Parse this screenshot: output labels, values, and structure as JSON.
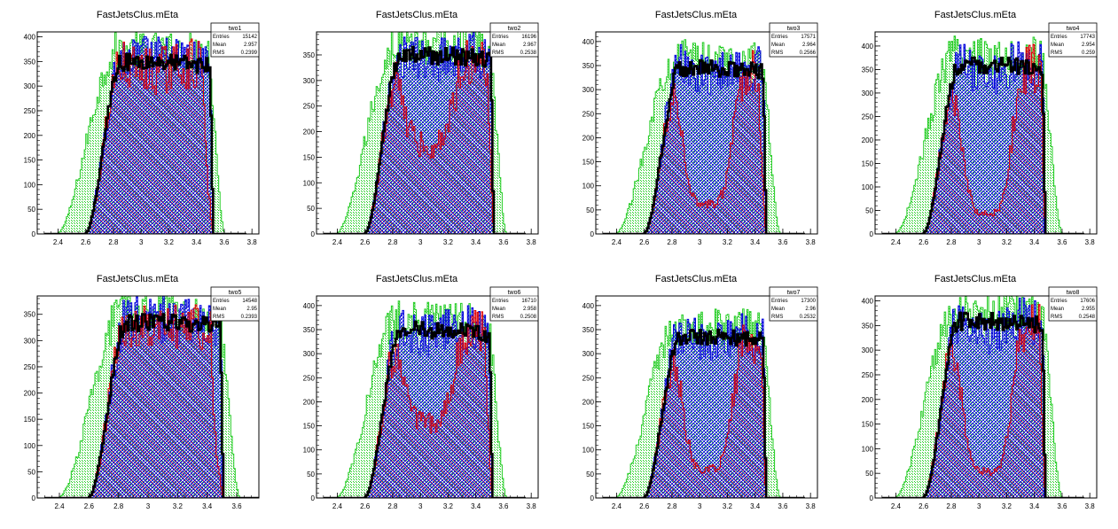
{
  "canvas_title": "",
  "colors": {
    "green": "#22cc22",
    "blue": "#0000dd",
    "red": "#dd0000",
    "black": "#000000"
  },
  "chart_data": [
    {
      "type": "bar",
      "title": "FastJetsClus.mEta",
      "stats": {
        "name": "two1",
        "entries_label": "Entries",
        "entries": "15142",
        "mean_label": "Mean",
        "mean": "2.957",
        "rms_label": "RMS",
        "rms": "0.2399"
      },
      "xlim": [
        2.25,
        3.85
      ],
      "ylim": [
        0,
        410
      ],
      "xticks": [
        "2.4",
        "2.6",
        "2.8",
        "3",
        "3.2",
        "3.4",
        "3.6",
        "3.8"
      ],
      "yticks": [
        "0",
        "50",
        "100",
        "150",
        "200",
        "250",
        "300",
        "350",
        "400"
      ],
      "dist": {
        "ymax": 360,
        "lo": 2.59,
        "hi": 3.52,
        "gLo": 2.38,
        "gHi": 3.6,
        "blueDip": 0.0,
        "redDip": 0.05,
        "redTail": 3.44,
        "bHi": 3.52
      }
    },
    {
      "type": "bar",
      "title": "FastJetsClus.mEta",
      "stats": {
        "name": "two2",
        "entries_label": "Entries",
        "entries": "16196",
        "mean_label": "Mean",
        "mean": "2.967",
        "rms_label": "RMS",
        "rms": "0.2538"
      },
      "xlim": [
        2.25,
        3.85
      ],
      "ylim": [
        0,
        395
      ],
      "xticks": [
        "2.4",
        "2.6",
        "2.8",
        "3",
        "3.2",
        "3.4",
        "3.6",
        "3.8"
      ],
      "yticks": [
        "0",
        "50",
        "100",
        "150",
        "200",
        "250",
        "300",
        "350"
      ],
      "dist": {
        "ymax": 360,
        "lo": 2.59,
        "hi": 3.53,
        "gLo": 2.38,
        "gHi": 3.62,
        "blueDip": 0.05,
        "redDip": 0.5,
        "redTail": 3.48,
        "bHi": 3.52
      }
    },
    {
      "type": "bar",
      "title": "FastJetsClus.mEta",
      "stats": {
        "name": "two3",
        "entries_label": "Entries",
        "entries": "17571",
        "mean_label": "Mean",
        "mean": "2.964",
        "rms_label": "RMS",
        "rms": "0.2566"
      },
      "xlim": [
        2.25,
        3.85
      ],
      "ylim": [
        0,
        420
      ],
      "xticks": [
        "2.4",
        "2.6",
        "2.8",
        "3",
        "3.2",
        "3.4",
        "3.6",
        "3.8"
      ],
      "yticks": [
        "0",
        "50",
        "100",
        "150",
        "200",
        "250",
        "300",
        "350",
        "400"
      ],
      "dist": {
        "ymax": 355,
        "lo": 2.59,
        "hi": 3.48,
        "gLo": 2.38,
        "gHi": 3.58,
        "blueDip": 0.05,
        "redDip": 0.82,
        "redTail": 3.42,
        "bHi": 3.47
      }
    },
    {
      "type": "bar",
      "title": "FastJetsClus.mEta",
      "stats": {
        "name": "two4",
        "entries_label": "Entries",
        "entries": "17743",
        "mean_label": "Mean",
        "mean": "2.954",
        "rms_label": "RMS",
        "rms": "0.259"
      },
      "xlim": [
        2.25,
        3.85
      ],
      "ylim": [
        0,
        430
      ],
      "xticks": [
        "2.4",
        "2.6",
        "2.8",
        "3",
        "3.2",
        "3.4",
        "3.6",
        "3.8"
      ],
      "yticks": [
        "0",
        "50",
        "100",
        "150",
        "200",
        "250",
        "300",
        "350",
        "400"
      ],
      "dist": {
        "ymax": 370,
        "lo": 2.59,
        "hi": 3.48,
        "gLo": 2.38,
        "gHi": 3.6,
        "blueDip": 0.08,
        "redDip": 0.88,
        "redTail": 3.44,
        "bHi": 3.46
      }
    },
    {
      "type": "bar",
      "title": "FastJetsClus.mEta",
      "stats": {
        "name": "two5",
        "entries_label": "Entries",
        "entries": "14548",
        "mean_label": "Mean",
        "mean": "2.95",
        "rms_label": "RMS",
        "rms": "0.2393"
      },
      "xlim": [
        2.25,
        3.75
      ],
      "ylim": [
        0,
        385
      ],
      "xticks": [
        "2.4",
        "2.6",
        "2.8",
        "3",
        "3.2",
        "3.4",
        "3.6"
      ],
      "yticks": [
        "0",
        "50",
        "100",
        "150",
        "200",
        "250",
        "300",
        "350"
      ],
      "dist": {
        "ymax": 345,
        "lo": 2.59,
        "hi": 3.51,
        "gLo": 2.38,
        "gHi": 3.62,
        "blueDip": 0.0,
        "redDip": 0.05,
        "redTail": 3.42,
        "bHi": 3.49
      }
    },
    {
      "type": "bar",
      "title": "FastJetsClus.mEta",
      "stats": {
        "name": "two6",
        "entries_label": "Entries",
        "entries": "16710",
        "mean_label": "Mean",
        "mean": "2.958",
        "rms_label": "RMS",
        "rms": "0.2508"
      },
      "xlim": [
        2.25,
        3.85
      ],
      "ylim": [
        0,
        420
      ],
      "xticks": [
        "2.4",
        "2.6",
        "2.8",
        "3",
        "3.2",
        "3.4",
        "3.6",
        "3.8"
      ],
      "yticks": [
        "0",
        "50",
        "100",
        "150",
        "200",
        "250",
        "300",
        "350",
        "400"
      ],
      "dist": {
        "ymax": 360,
        "lo": 2.59,
        "hi": 3.52,
        "gLo": 2.38,
        "gHi": 3.62,
        "blueDip": 0.05,
        "redDip": 0.55,
        "redTail": 3.46,
        "bHi": 3.52
      }
    },
    {
      "type": "bar",
      "title": "FastJetsClus.mEta",
      "stats": {
        "name": "two7",
        "entries_label": "Entries",
        "entries": "17300",
        "mean_label": "Mean",
        "mean": "2.96",
        "rms_label": "RMS",
        "rms": "0.2532"
      },
      "xlim": [
        2.25,
        3.85
      ],
      "ylim": [
        0,
        420
      ],
      "xticks": [
        "2.4",
        "2.6",
        "2.8",
        "3",
        "3.2",
        "3.4",
        "3.6",
        "3.8"
      ],
      "yticks": [
        "0",
        "50",
        "100",
        "150",
        "200",
        "250",
        "300",
        "350",
        "400"
      ],
      "dist": {
        "ymax": 345,
        "lo": 2.59,
        "hi": 3.48,
        "gLo": 2.38,
        "gHi": 3.58,
        "blueDip": 0.05,
        "redDip": 0.82,
        "redTail": 3.44,
        "bHi": 3.47
      }
    },
    {
      "type": "bar",
      "title": "FastJetsClus.mEta",
      "stats": {
        "name": "two8",
        "entries_label": "Entries",
        "entries": "17606",
        "mean_label": "Mean",
        "mean": "2.955",
        "rms_label": "RMS",
        "rms": "0.2548"
      },
      "xlim": [
        2.25,
        3.85
      ],
      "ylim": [
        0,
        410
      ],
      "xticks": [
        "2.4",
        "2.6",
        "2.8",
        "3",
        "3.2",
        "3.4",
        "3.6",
        "3.8"
      ],
      "yticks": [
        "0",
        "50",
        "100",
        "150",
        "200",
        "250",
        "300",
        "350",
        "400"
      ],
      "dist": {
        "ymax": 370,
        "lo": 2.59,
        "hi": 3.48,
        "gLo": 2.38,
        "gHi": 3.6,
        "blueDip": 0.08,
        "redDip": 0.85,
        "redTail": 3.43,
        "bHi": 3.46
      }
    }
  ]
}
